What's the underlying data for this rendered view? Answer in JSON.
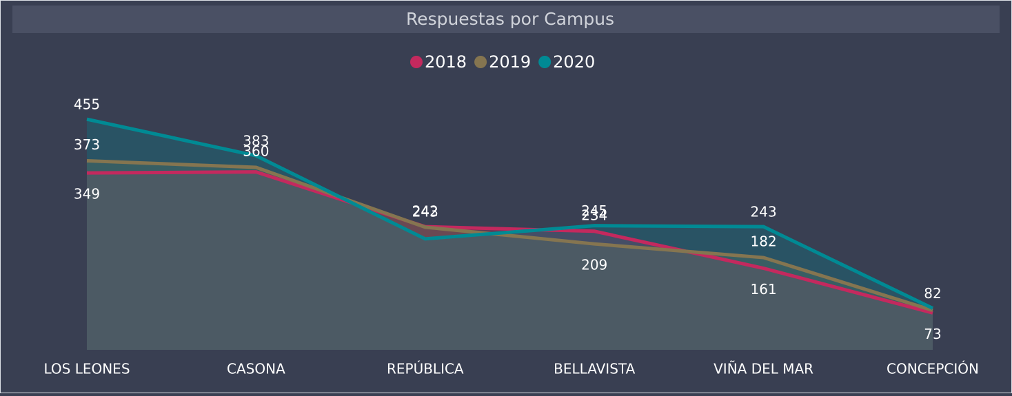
{
  "chart_data": {
    "type": "area",
    "title": "Respuestas por Campus",
    "categories": [
      "LOS LEONES",
      "CASONA",
      "REPÚBLICA",
      "BELLAVISTA",
      "VIÑA DEL MAR",
      "CONCEPCIÓN"
    ],
    "series": [
      {
        "name": "2018",
        "color": "#c4295e",
        "values": [
          349,
          351,
          243,
          234,
          161,
          73
        ],
        "value_labels": [
          "349",
          null,
          "243",
          "234",
          "161",
          "73"
        ]
      },
      {
        "name": "2019",
        "color": "#857550",
        "values": [
          373,
          360,
          242,
          209,
          182,
          78
        ],
        "value_labels": [
          "373",
          "360",
          "242",
          "209",
          "182",
          null
        ]
      },
      {
        "name": "2020",
        "color": "#008a94",
        "values": [
          455,
          383,
          219,
          245,
          243,
          82
        ],
        "value_labels": [
          "455",
          "383",
          null,
          "245",
          "243",
          "82"
        ]
      }
    ],
    "ylim": [
      0,
      500
    ]
  }
}
